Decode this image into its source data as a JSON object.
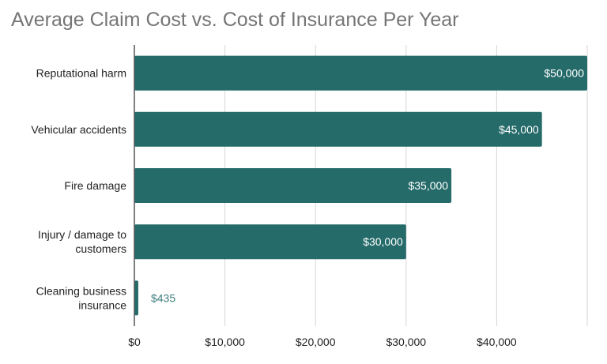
{
  "chart_data": {
    "type": "bar",
    "orientation": "horizontal",
    "title": "Average Claim Cost vs. Cost of Insurance Per Year",
    "categories": [
      [
        "Reputational harm"
      ],
      [
        "Vehicular accidents"
      ],
      [
        "Fire damage"
      ],
      [
        "Injury / damage to",
        "customers"
      ],
      [
        "Cleaning business",
        "insurance"
      ]
    ],
    "values": [
      50000,
      45000,
      35000,
      30000,
      435
    ],
    "data_labels": [
      "$50,000",
      "$45,000",
      "$35,000",
      "$30,000",
      "$435"
    ],
    "xlim": [
      0,
      50000
    ],
    "xticks": [
      0,
      10000,
      20000,
      30000,
      40000,
      50000
    ],
    "xtick_labels": [
      "$0",
      "$10,000",
      "$20,000",
      "$30,000",
      "$40,000",
      ""
    ],
    "grid": true,
    "bar_color": "#256b6a",
    "outside_label_color": "#3d7f7d",
    "inside_label_color": "#ffffff"
  }
}
